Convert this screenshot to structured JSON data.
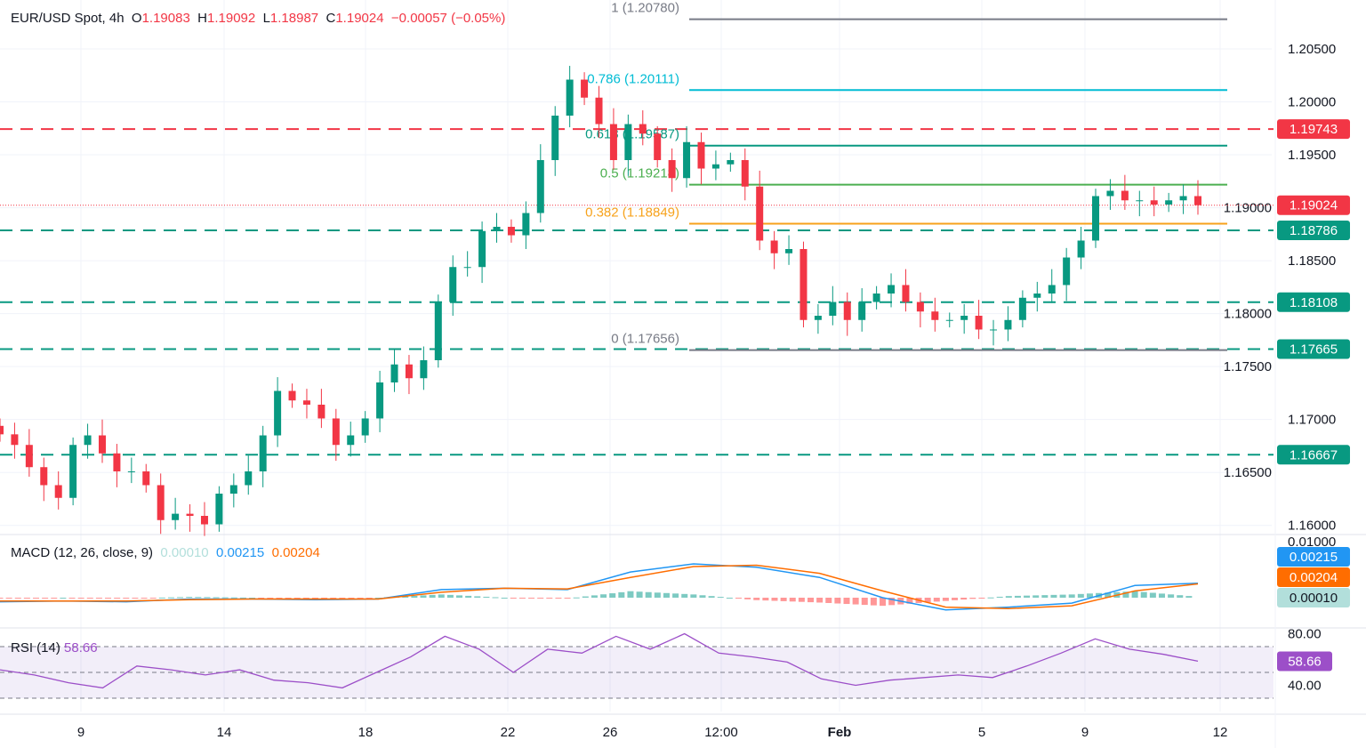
{
  "header": {
    "symbol": "EUR/USD Spot, 4h",
    "o_label": "O",
    "o": "1.19083",
    "h_label": "H",
    "h": "1.19092",
    "l_label": "L",
    "l": "1.18987",
    "c_label": "C",
    "c": "1.19024",
    "change": "−0.00057 (−0.05%)"
  },
  "macd_legend": {
    "title": "MACD (12, 26, close, 9)",
    "hist": "0.00010",
    "macd": "0.00215",
    "signal": "0.00204"
  },
  "rsi_legend": {
    "title": "RSI (14)",
    "value": "58.66"
  },
  "colors": {
    "up": "#089981",
    "down": "#f23645",
    "macd": "#2196f3",
    "signal": "#ff6d00",
    "rsi": "#9c4fc8"
  },
  "chart_data": {
    "type": "candlestick",
    "title": "EUR/USD Spot, 4h",
    "yticks": [
      "1.20500",
      "1.20000",
      "1.19500",
      "1.19000",
      "1.18500",
      "1.18000",
      "1.17500",
      "1.17000",
      "1.16500",
      "1.16000"
    ],
    "ylim": [
      1.1595,
      1.2085
    ],
    "xticks": [
      "9",
      "14",
      "18",
      "22",
      "26",
      "12:00",
      "Feb",
      "5",
      "9",
      "12"
    ],
    "closes": [
      1.1686,
      1.1676,
      1.1655,
      1.1638,
      1.1626,
      1.1676,
      1.1685,
      1.1668,
      1.1651,
      1.1651,
      1.1638,
      1.1605,
      1.1611,
      1.1609,
      1.1601,
      1.163,
      1.1638,
      1.1651,
      1.1685,
      1.1727,
      1.1718,
      1.1714,
      1.1701,
      1.1676,
      1.1685,
      1.1701,
      1.1735,
      1.1752,
      1.1739,
      1.1756,
      1.1811,
      1.1844,
      1.1844,
      1.1878,
      1.1882,
      1.1874,
      1.1895,
      1.1945,
      1.1987,
      1.2021,
      1.2004,
      1.1979,
      1.1945,
      1.1979,
      1.197,
      1.1945,
      1.1928,
      1.1962,
      1.1937,
      1.1941,
      1.1945,
      1.192,
      1.1869,
      1.1857,
      1.1861,
      1.1794,
      1.1798,
      1.1811,
      1.1794,
      1.1811,
      1.1819,
      1.1827,
      1.1811,
      1.1802,
      1.1794,
      1.1794,
      1.1798,
      1.1785,
      1.1785,
      1.1794,
      1.1815,
      1.1819,
      1.1827,
      1.1853,
      1.1869,
      1.1911,
      1.1916,
      1.1907,
      1.1907,
      1.1903,
      1.1907,
      1.1911,
      1.19024
    ],
    "fib_levels": [
      {
        "label": "1 (1.20780)",
        "price": 1.2078,
        "color": "#787b86"
      },
      {
        "label": "0.786 (1.20111)",
        "price": 1.20111,
        "color": "#00bcd4"
      },
      {
        "label": "0.618 (1.19587)",
        "price": 1.19587,
        "color": "#089981"
      },
      {
        "label": "0.5 (1.19218)",
        "price": 1.19218,
        "color": "#4caf50"
      },
      {
        "label": "0.382 (1.18849)",
        "price": 1.18849,
        "color": "#f7a21b"
      },
      {
        "label": "0 (1.17656)",
        "price": 1.17656,
        "color": "#787b86"
      }
    ],
    "horizontal_lines": [
      {
        "label": "1.19743",
        "price": 1.19743,
        "color": "#f23645"
      },
      {
        "label": "1.18786",
        "price": 1.18786,
        "color": "#089981"
      },
      {
        "label": "1.18108",
        "price": 1.18108,
        "color": "#089981"
      },
      {
        "label": "1.17665",
        "price": 1.17665,
        "color": "#089981"
      },
      {
        "label": "1.16667",
        "price": 1.16667,
        "color": "#089981"
      }
    ],
    "last_price": {
      "label": "1.19024",
      "price": 1.19024,
      "color": "#f23645"
    },
    "macd": {
      "ytick": "0.01000",
      "macd": [
        -0.0006,
        -0.0005,
        -0.0006,
        -0.0002,
        -0.0002,
        -0.0003,
        -0.0002,
        0.0012,
        0.0014,
        0.0012,
        0.0038,
        0.005,
        0.0045,
        0.003,
        0.0,
        -0.0018,
        -0.0014,
        -0.0008,
        0.0018,
        0.00215
      ],
      "signal": [
        -0.0005,
        -0.0005,
        -0.0005,
        -0.0003,
        -0.0002,
        -0.0002,
        -0.0002,
        0.0008,
        0.0014,
        0.0013,
        0.003,
        0.0046,
        0.0048,
        0.0036,
        0.001,
        -0.0014,
        -0.0016,
        -0.0012,
        0.001,
        0.00204
      ]
    },
    "rsi": {
      "yticks": [
        "80.00",
        "40.00"
      ],
      "bands": [
        70,
        50,
        30
      ],
      "values": [
        52,
        48,
        42,
        38,
        55,
        52,
        48,
        52,
        44,
        42,
        38,
        50,
        62,
        78,
        68,
        50,
        68,
        65,
        78,
        68,
        80,
        65,
        62,
        58,
        45,
        40,
        44,
        46,
        48,
        46,
        55,
        65,
        76,
        68,
        64,
        58.66
      ]
    }
  }
}
